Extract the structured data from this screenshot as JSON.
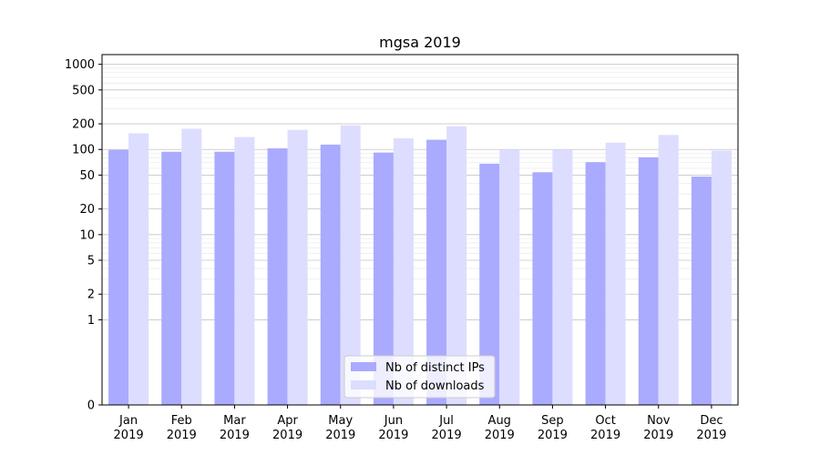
{
  "chart_data": {
    "type": "bar",
    "title": "mgsa 2019",
    "xlabel": "",
    "ylabel": "",
    "yscale": "symlog",
    "ylim": [
      0,
      1300
    ],
    "yticks": [
      0,
      1,
      2,
      5,
      10,
      20,
      50,
      100,
      200,
      500,
      1000
    ],
    "grid": "horizontal",
    "legend_position": "bottom-center",
    "categories": [
      [
        "Jan",
        "2019"
      ],
      [
        "Feb",
        "2019"
      ],
      [
        "Mar",
        "2019"
      ],
      [
        "Apr",
        "2019"
      ],
      [
        "May",
        "2019"
      ],
      [
        "Jun",
        "2019"
      ],
      [
        "Jul",
        "2019"
      ],
      [
        "Aug",
        "2019"
      ],
      [
        "Sep",
        "2019"
      ],
      [
        "Oct",
        "2019"
      ],
      [
        "Nov",
        "2019"
      ],
      [
        "Dec",
        "2019"
      ]
    ],
    "series": [
      {
        "name": "Nb of distinct IPs",
        "color": "#aaaaff",
        "values": [
          99,
          94,
          94,
          103,
          114,
          92,
          130,
          68,
          54,
          71,
          81,
          48
        ]
      },
      {
        "name": "Nb of downloads",
        "color": "#ddddff",
        "values": [
          155,
          175,
          140,
          170,
          192,
          135,
          188,
          100,
          100,
          120,
          148,
          97
        ]
      }
    ]
  }
}
